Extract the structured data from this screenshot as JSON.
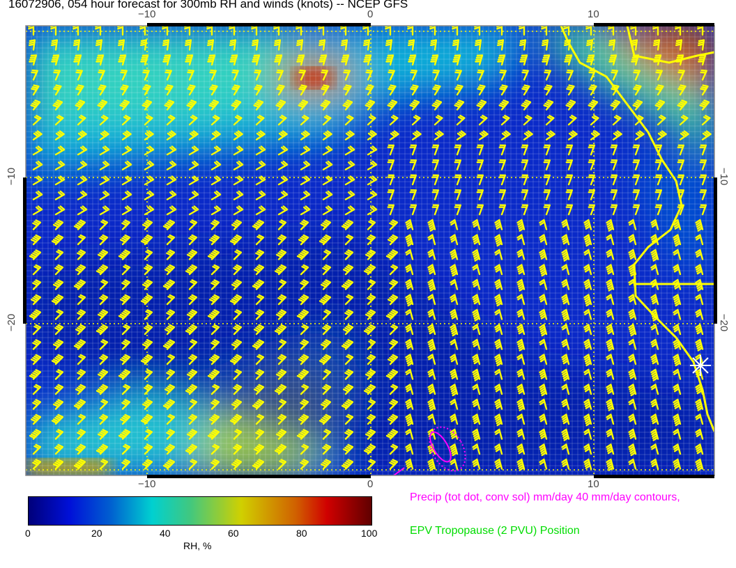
{
  "title": "16072906, 054 hour forecast for 300mb RH and winds (knots) -- NCEP GFS",
  "map": {
    "lon_ticks": [
      "−10",
      "0",
      "10"
    ],
    "lat_ticks": [
      "−10",
      "−20"
    ],
    "extent": {
      "lon": [
        -15.4,
        15.4
      ],
      "lat": [
        0.4,
        -30.4
      ]
    },
    "barb_color": "#ffff00",
    "coast_color": "#ffff00",
    "precip_contour_color": "#ff00ff"
  },
  "colorbar": {
    "label": "RH, %",
    "ticks": [
      "0",
      "20",
      "40",
      "60",
      "80",
      "100"
    ],
    "range": [
      0,
      100
    ]
  },
  "legend": {
    "precip": "Precip (tot dot, conv sol) mm/day 40 mm/day contours,",
    "epv": "EPV Tropopause (2 PVU) Position"
  }
}
